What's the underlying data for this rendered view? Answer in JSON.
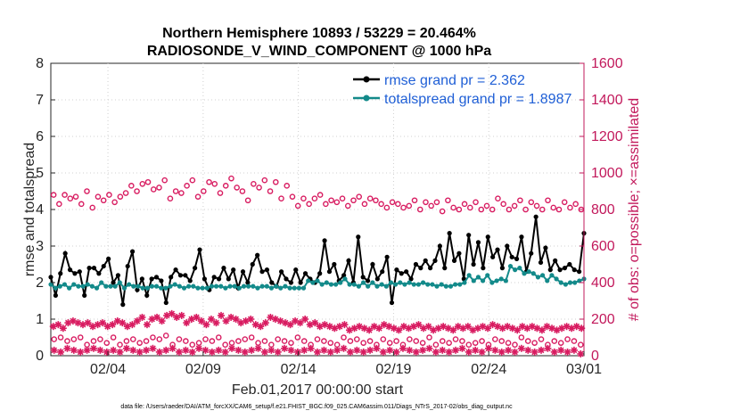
{
  "chart_data": {
    "type": "line",
    "title_line1": "Northern Hemisphere 10893 / 53229 = 20.464%",
    "title_line2": "RADIOSONDE_V_WIND_COMPONENT @ 1000 hPa",
    "xlabel": "Feb.01,2017 00:00:00 start",
    "ylabel_left": "rmse and totalspread",
    "ylabel_right": "# of obs: o=possible; ×=assimilated",
    "footnote": "data file: /Users/raeder/DAI/ATM_forcXX/CAM6_setup/f.e21.FHIST_BGC.f09_025.CAM6assim.011/Diags_NTrS_2017-02/obs_diag_output.nc",
    "xlim": [
      0,
      28
    ],
    "ylim_left": [
      0,
      8
    ],
    "ylim_right": [
      0,
      1600
    ],
    "x_ticks": [
      {
        "day": 3,
        "label": "02/04"
      },
      {
        "day": 8,
        "label": "02/09"
      },
      {
        "day": 13,
        "label": "02/14"
      },
      {
        "day": 18,
        "label": "02/19"
      },
      {
        "day": 23,
        "label": "02/24"
      },
      {
        "day": 28,
        "label": "03/01"
      }
    ],
    "y_ticks_left": [
      "0",
      "1",
      "2",
      "3",
      "4",
      "5",
      "6",
      "7",
      "8"
    ],
    "y_ticks_right": [
      "0",
      "200",
      "400",
      "600",
      "800",
      "1000",
      "1200",
      "1400",
      "1600"
    ],
    "colors": {
      "rmse": "#000000",
      "totalspread": "#138a8a",
      "obs": "#d81b60",
      "right_axis": "#c2185b",
      "legend_text": "#1f5fd6"
    },
    "legend": [
      {
        "name": "rmse grand pr = 2.362",
        "series": "rmse"
      },
      {
        "name": "totalspread grand pr = 1.8987",
        "series": "totalspread"
      }
    ],
    "samples_per_day": 4,
    "series": [
      {
        "name": "rmse",
        "axis": "left",
        "values": [
          2.15,
          1.65,
          2.25,
          2.8,
          2.35,
          2.25,
          2.3,
          1.65,
          2.4,
          2.4,
          2.25,
          2.45,
          2.65,
          2.0,
          2.2,
          1.4,
          2.45,
          2.85,
          1.8,
          2.1,
          1.65,
          2.1,
          2.15,
          2.05,
          1.45,
          2.15,
          2.35,
          2.2,
          2.2,
          2.05,
          2.4,
          2.9,
          2.1,
          1.8,
          2.15,
          2.1,
          2.4,
          2.1,
          2.35,
          1.85,
          2.3,
          2.0,
          2.5,
          2.75,
          2.3,
          2.35,
          2.0,
          1.9,
          2.3,
          2.1,
          2.0,
          2.35,
          2.0,
          2.25,
          2.1,
          2.0,
          2.25,
          3.15,
          2.3,
          2.5,
          2.05,
          2.2,
          2.6,
          2.0,
          3.25,
          2.15,
          2.05,
          2.5,
          2.1,
          2.3,
          2.7,
          1.45,
          2.35,
          2.25,
          2.3,
          2.1,
          2.5,
          2.4,
          2.6,
          2.4,
          2.6,
          3.0,
          2.4,
          3.35,
          2.6,
          2.8,
          2.1,
          3.3,
          2.5,
          3.1,
          2.4,
          3.25,
          2.7,
          2.9,
          2.4,
          3.0,
          2.7,
          2.65,
          3.25,
          2.3,
          2.8,
          3.8,
          2.55,
          2.95,
          2.35,
          2.6,
          2.35,
          2.4,
          2.5,
          2.35,
          2.3,
          3.35
        ]
      },
      {
        "name": "totalspread",
        "axis": "left",
        "values": [
          1.95,
          1.85,
          1.9,
          1.95,
          1.85,
          1.95,
          1.9,
          1.9,
          1.95,
          1.9,
          1.85,
          2.0,
          1.9,
          1.9,
          1.9,
          2.0,
          1.85,
          1.95,
          1.9,
          1.9,
          1.85,
          1.85,
          1.9,
          1.9,
          1.85,
          1.85,
          1.9,
          1.95,
          1.9,
          1.85,
          1.9,
          1.9,
          1.85,
          1.85,
          1.85,
          1.9,
          1.9,
          1.9,
          1.85,
          1.9,
          1.9,
          1.85,
          1.9,
          1.9,
          1.9,
          1.85,
          1.9,
          1.9,
          1.85,
          1.9,
          1.85,
          1.9,
          1.85,
          1.85,
          1.85,
          1.85,
          2.05,
          2.0,
          2.05,
          1.95,
          2.0,
          1.95,
          1.95,
          2.0,
          2.1,
          1.95,
          1.95,
          1.9,
          2.0,
          1.9,
          2.0,
          1.9,
          1.95,
          1.9,
          2.0,
          1.95,
          2.0,
          1.95,
          2.0,
          1.95,
          1.95,
          2.0,
          1.95,
          1.95,
          1.9,
          1.95,
          1.9,
          1.9,
          1.95,
          1.95,
          2.0,
          2.2,
          2.05,
          2.15,
          2.05,
          2.2,
          2.0,
          2.05,
          2.1,
          2.05,
          2.45,
          2.35,
          2.4,
          2.25,
          2.3,
          2.25,
          2.15,
          2.2,
          2.05,
          2.2,
          2.1,
          2.0,
          1.95,
          2.0,
          2.0,
          2.05,
          2.1
        ]
      },
      {
        "name": "possible obs (o)",
        "axis": "right",
        "marker": "o",
        "values": [
          880,
          830,
          880,
          860,
          870,
          830,
          900,
          810,
          870,
          850,
          880,
          840,
          870,
          890,
          930,
          900,
          940,
          950,
          910,
          920,
          960,
          860,
          900,
          890,
          930,
          960,
          870,
          900,
          950,
          940,
          890,
          930,
          970,
          920,
          900,
          850,
          940,
          920,
          960,
          900,
          950,
          860,
          930,
          870,
          820,
          860,
          830,
          860,
          880,
          830,
          850,
          840,
          860,
          820,
          850,
          870,
          830,
          860,
          850,
          830,
          810,
          840,
          830,
          810,
          820,
          850,
          800,
          840,
          820,
          840,
          790,
          850,
          810,
          800,
          830,
          810,
          840,
          800,
          820,
          800,
          860,
          830,
          800,
          820,
          850,
          800,
          840,
          820,
          800,
          850,
          810,
          800,
          840,
          810,
          830,
          800
        ]
      },
      {
        "name": "possible obs, 00/12Z minima (o)",
        "axis": "right",
        "marker": "o",
        "values": [
          90,
          100,
          80,
          90,
          100,
          60,
          80,
          90,
          70,
          100,
          60,
          80,
          90,
          70,
          80,
          100,
          90,
          110,
          60,
          90,
          80,
          60,
          70,
          90,
          80,
          100,
          60,
          70,
          80,
          90,
          100,
          70,
          80,
          60,
          90,
          80,
          70,
          100,
          80,
          60,
          90,
          80,
          70,
          60,
          100,
          80,
          90,
          70,
          80,
          60,
          90,
          70,
          80,
          60,
          90,
          80,
          70,
          100,
          60,
          80,
          70,
          90,
          80,
          60,
          70,
          80,
          60,
          90,
          80,
          70,
          60,
          100,
          80,
          70,
          90,
          60,
          80,
          70,
          90,
          80,
          60
        ]
      },
      {
        "name": "assimilated obs (×)",
        "axis": "right",
        "marker": "*",
        "values": [
          160,
          170,
          150,
          180,
          190,
          180,
          170,
          180,
          160,
          170,
          180,
          160,
          170,
          190,
          180,
          160,
          170,
          190,
          210,
          170,
          200,
          210,
          190,
          220,
          230,
          210,
          220,
          180,
          200,
          210,
          190,
          170,
          200,
          180,
          220,
          190,
          210,
          200,
          180,
          190,
          200,
          170,
          160,
          180,
          210,
          200,
          190,
          180,
          170,
          190,
          180,
          200,
          170,
          180,
          160,
          170,
          160,
          150,
          160,
          170,
          140,
          150,
          160,
          150,
          140,
          160,
          150,
          170,
          160,
          150,
          140,
          160,
          150,
          160,
          170,
          150,
          160,
          140,
          150,
          160,
          150,
          140,
          160,
          150,
          160,
          140,
          150,
          160,
          150,
          170,
          160,
          150,
          160,
          150,
          140,
          160,
          150,
          160,
          150,
          140,
          160,
          150,
          140,
          150,
          160,
          150,
          160,
          150
        ]
      },
      {
        "name": "assimilated obs, 00/12Z minima (×)",
        "axis": "right",
        "marker": "*",
        "values": [
          30,
          20,
          40,
          30,
          20,
          30,
          40,
          30,
          20,
          30,
          20,
          40,
          30,
          20,
          30,
          40,
          20,
          30,
          40,
          20,
          30,
          20,
          40,
          30,
          20,
          30,
          20,
          40,
          30,
          20,
          30,
          40,
          20,
          30,
          20,
          40,
          30,
          20,
          30,
          40,
          20,
          30,
          20,
          30,
          40,
          20,
          30,
          20,
          30,
          40,
          20,
          30,
          20,
          40,
          30,
          20,
          30,
          40,
          20,
          30,
          20,
          30,
          40,
          20,
          30,
          20,
          40,
          30,
          20,
          30,
          20,
          40,
          30,
          20,
          30,
          40,
          20,
          30,
          20,
          30,
          10
        ]
      }
    ]
  }
}
